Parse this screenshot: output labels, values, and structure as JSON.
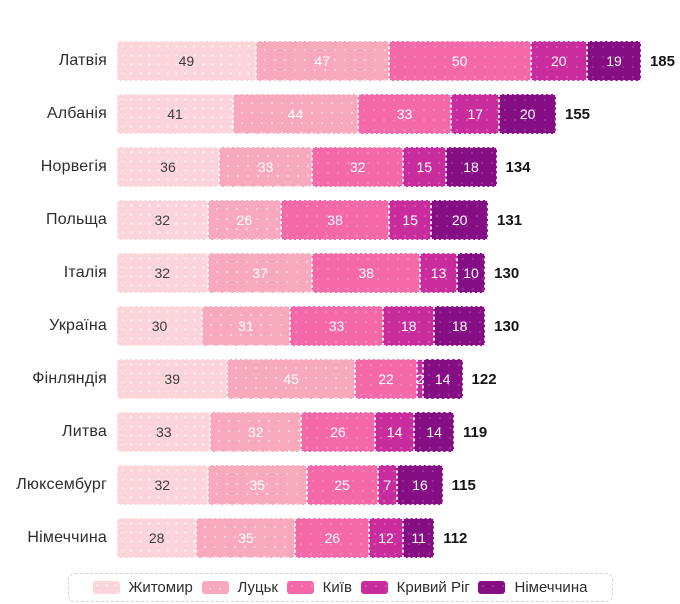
{
  "chart_data": {
    "type": "bar",
    "orientation": "horizontal",
    "stacked": true,
    "title": "",
    "xlabel": "",
    "ylabel": "",
    "xlim": [
      0,
      185
    ],
    "grid": false,
    "legend_position": "bottom",
    "categories": [
      "Латвія",
      "Албанія",
      "Норвегія",
      "Польща",
      "Італія",
      "Україна",
      "Фінляндія",
      "Литва",
      "Люксембург",
      "Німеччина"
    ],
    "series": [
      {
        "name": "Житомир",
        "color": "#fbd5da",
        "values": [
          49,
          41,
          36,
          32,
          32,
          30,
          39,
          33,
          32,
          28
        ]
      },
      {
        "name": "Луцьк",
        "color": "#f8a9bb",
        "values": [
          47,
          44,
          33,
          26,
          37,
          31,
          45,
          32,
          35,
          35
        ]
      },
      {
        "name": "Київ",
        "color": "#f569a9",
        "values": [
          50,
          33,
          32,
          38,
          38,
          33,
          22,
          26,
          25,
          26
        ]
      },
      {
        "name": "Кривий Ріг",
        "color": "#c92c9d",
        "values": [
          20,
          17,
          15,
          15,
          13,
          18,
          2,
          14,
          7,
          12
        ]
      },
      {
        "name": "Німеччина",
        "color": "#860e85",
        "values": [
          19,
          20,
          18,
          20,
          10,
          18,
          14,
          14,
          16,
          11
        ]
      }
    ],
    "totals": [
      185,
      155,
      134,
      131,
      130,
      130,
      122,
      119,
      115,
      112
    ],
    "value_label_color_first_series": "#3d3d3d",
    "value_label_color_other_series": "#ffffff"
  }
}
